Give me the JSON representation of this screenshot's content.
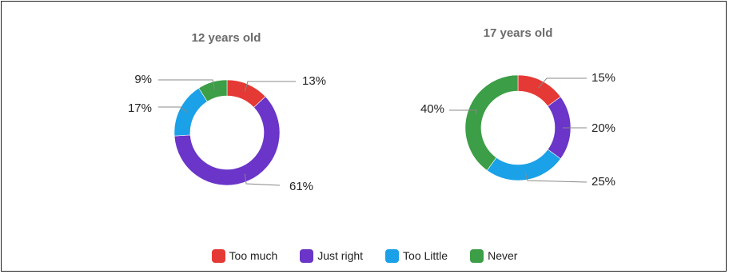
{
  "chart_data": [
    {
      "type": "donut",
      "title": "12 years old",
      "categories": [
        "Too much",
        "Just right",
        "Too Little",
        "Never"
      ],
      "values": [
        13,
        61,
        17,
        9
      ],
      "labels": [
        "13%",
        "61%",
        "17%",
        "9%"
      ]
    },
    {
      "type": "donut",
      "title": "17 years old",
      "categories": [
        "Too much",
        "Just right",
        "Too Little",
        "Never"
      ],
      "values": [
        15,
        20,
        25,
        40
      ],
      "labels": [
        "15%",
        "20%",
        "25%",
        "40%"
      ]
    }
  ],
  "legend": {
    "placement": "bottom-center",
    "items": [
      {
        "label": "Too much",
        "color": "#e53935"
      },
      {
        "label": "Just right",
        "color": "#6a35c8"
      },
      {
        "label": "Too Little",
        "color": "#1aa1e8"
      },
      {
        "label": "Never",
        "color": "#3c9e46"
      }
    ]
  }
}
